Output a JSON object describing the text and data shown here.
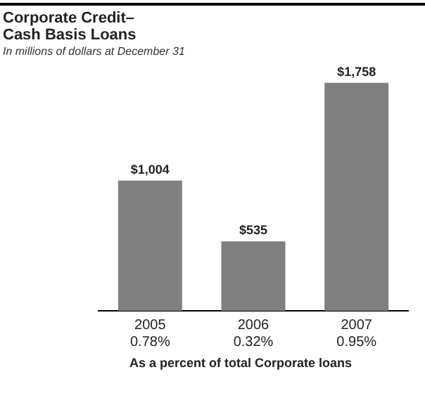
{
  "chart_data": {
    "type": "bar",
    "title": "Corporate Credit–\nCash Basis Loans",
    "subtitle": "In millions of dollars at December 31",
    "xlabel": "As a percent of total Corporate loans",
    "categories": [
      "2005",
      "2006",
      "2007"
    ],
    "values": [
      1004,
      535,
      1758
    ],
    "value_labels": [
      "$1,004",
      "$535",
      "$1,758"
    ],
    "color": "#808080",
    "annotations": [
      "0.78%",
      "0.32%",
      "0.95%"
    ],
    "grid": false,
    "legend": false,
    "tick_labels": "x"
  }
}
